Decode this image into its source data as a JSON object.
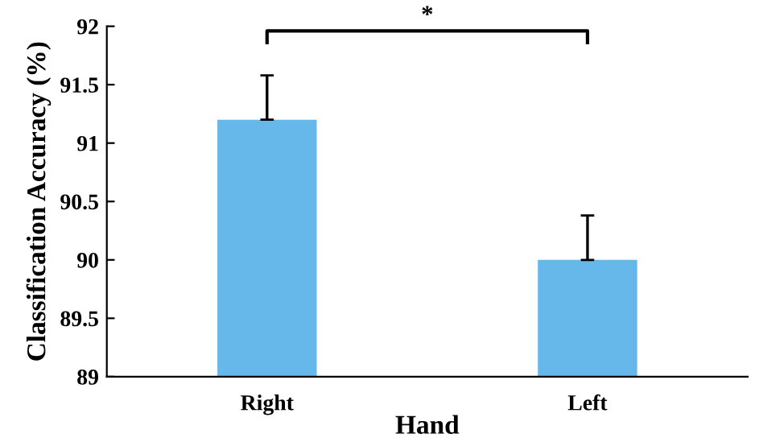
{
  "chart_data": {
    "type": "bar",
    "xlabel": "Hand",
    "ylabel": "Classification Accuracy (%)",
    "categories": [
      "Right",
      "Left"
    ],
    "values": [
      91.2,
      90.0
    ],
    "errors": [
      [
        91.2,
        91.58
      ],
      [
        90.0,
        90.38
      ]
    ],
    "color": "#66b8ea",
    "ylim": [
      89,
      92
    ],
    "yticks": [
      89,
      89.5,
      90,
      90.5,
      91,
      91.5,
      92
    ],
    "annotations": [
      "*"
    ],
    "grid": false,
    "legend": false
  }
}
